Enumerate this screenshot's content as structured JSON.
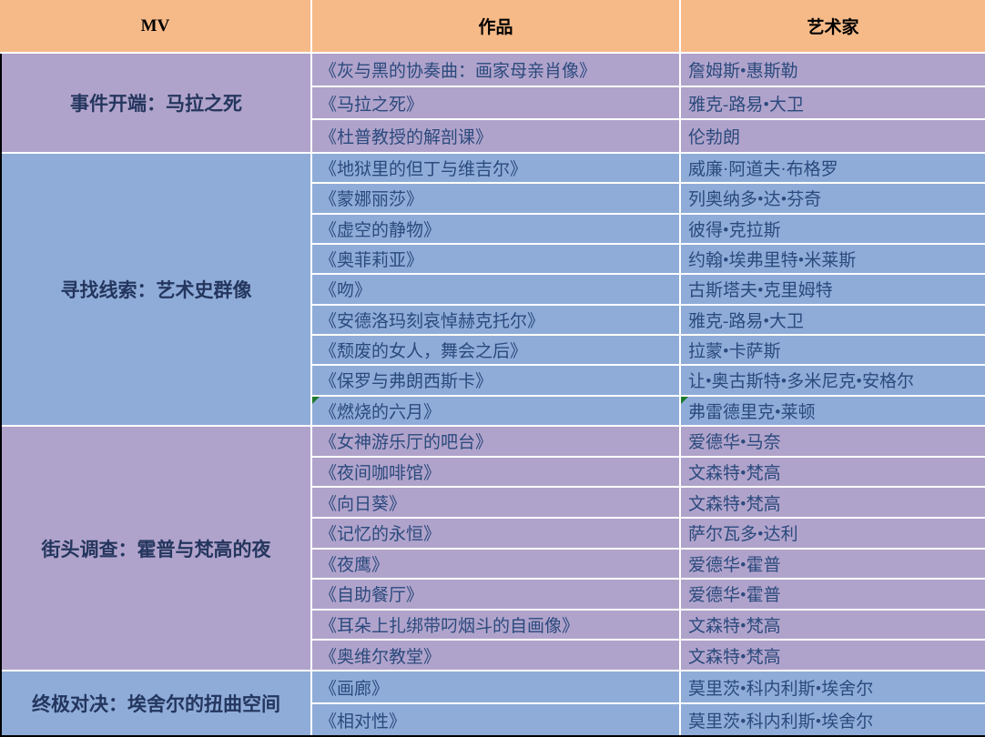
{
  "colors": {
    "header_bg": "#F6BA88",
    "purple_bg": "#B0A3CB",
    "blue_bg": "#8FACD9",
    "grid_line": "#FFFFFF",
    "header_text": "#000000",
    "label_text": "#24365E",
    "body_text": "#2B4A7D",
    "flag_green": "#1D7A2C",
    "outer_border": "#000000"
  },
  "table": {
    "header": {
      "mv": "MV",
      "work": "作品",
      "artist": "艺术家"
    },
    "groups": [
      {
        "label": "事件开端：马拉之死",
        "theme": "purple",
        "rows": [
          {
            "work": "《灰与黑的协奏曲：画家母亲肖像》",
            "artist": "詹姆斯•惠斯勒"
          },
          {
            "work": "《马拉之死》",
            "artist": "雅克-路易•大卫"
          },
          {
            "work": "《杜普教授的解剖课》",
            "artist": "伦勃朗"
          }
        ]
      },
      {
        "label": "寻找线索：艺术史群像",
        "theme": "blue",
        "rows": [
          {
            "work": "《地狱里的但丁与维吉尔》",
            "artist": "威廉·阿道夫·布格罗"
          },
          {
            "work": "《蒙娜丽莎》",
            "artist": "列奥纳多•达•芬奇"
          },
          {
            "work": "《虚空的静物》",
            "artist": "彼得•克拉斯"
          },
          {
            "work": "《奥菲莉亚》",
            "artist": "约翰•埃弗里特•米莱斯"
          },
          {
            "work": "《吻》",
            "artist": "古斯塔夫•克里姆特"
          },
          {
            "work": "《安德洛玛刻哀悼赫克托尔》",
            "artist": "雅克-路易•大卫"
          },
          {
            "work": "《颓废的女人，舞会之后》",
            "artist": "拉蒙•卡萨斯"
          },
          {
            "work": "《保罗与弗朗西斯卡》",
            "artist": "让•奥古斯特•多米尼克•安格尔"
          },
          {
            "work": "《燃烧的六月》",
            "artist": "弗雷德里克•莱顿",
            "work_flag": true,
            "artist_flag": true
          }
        ]
      },
      {
        "label": "街头调查：霍普与梵高的夜",
        "theme": "purple",
        "rows": [
          {
            "work": "《女神游乐厅的吧台》",
            "artist": "爱德华•马奈"
          },
          {
            "work": "《夜间咖啡馆》",
            "artist": "文森特•梵高"
          },
          {
            "work": "《向日葵》",
            "artist": "文森特•梵高"
          },
          {
            "work": "《记忆的永恒》",
            "artist": "萨尔瓦多•达利"
          },
          {
            "work": "《夜鹰》",
            "artist": "爱德华•霍普"
          },
          {
            "work": "《自助餐厅》",
            "artist": "爱德华•霍普"
          },
          {
            "work": "《耳朵上扎绑带叼烟斗的自画像》",
            "artist": "文森特•梵高"
          },
          {
            "work": "《奥维尔教堂》",
            "artist": "文森特•梵高"
          }
        ]
      },
      {
        "label": "终极对决：埃舍尔的扭曲空间",
        "theme": "blue",
        "rows": [
          {
            "work": "《画廊》",
            "artist": "莫里茨•科内利斯•埃舍尔"
          },
          {
            "work": "《相对性》",
            "artist": "莫里茨•科内利斯•埃舍尔"
          }
        ]
      }
    ]
  },
  "chart_data": {
    "type": "table",
    "columns": [
      "MV",
      "作品",
      "艺术家"
    ],
    "rows": [
      [
        "事件开端：马拉之死",
        "《灰与黑的协奏曲：画家母亲肖像》",
        "詹姆斯•惠斯勒"
      ],
      [
        "事件开端：马拉之死",
        "《马拉之死》",
        "雅克-路易•大卫"
      ],
      [
        "事件开端：马拉之死",
        "《杜普教授的解剖课》",
        "伦勃朗"
      ],
      [
        "寻找线索：艺术史群像",
        "《地狱里的但丁与维吉尔》",
        "威廉·阿道夫·布格罗"
      ],
      [
        "寻找线索：艺术史群像",
        "《蒙娜丽莎》",
        "列奥纳多•达•芬奇"
      ],
      [
        "寻找线索：艺术史群像",
        "《虚空的静物》",
        "彼得•克拉斯"
      ],
      [
        "寻找线索：艺术史群像",
        "《奥菲莉亚》",
        "约翰•埃弗里特•米莱斯"
      ],
      [
        "寻找线索：艺术史群像",
        "《吻》",
        "古斯塔夫•克里姆特"
      ],
      [
        "寻找线索：艺术史群像",
        "《安德洛玛刻哀悼赫克托尔》",
        "雅克-路易•大卫"
      ],
      [
        "寻找线索：艺术史群像",
        "《颓废的女人，舞会之后》",
        "拉蒙•卡萨斯"
      ],
      [
        "寻找线索：艺术史群像",
        "《保罗与弗朗西斯卡》",
        "让•奥古斯特•多米尼克•安格尔"
      ],
      [
        "寻找线索：艺术史群像",
        "《燃烧的六月》",
        "弗雷德里克•莱顿"
      ],
      [
        "街头调查：霍普与梵高的夜",
        "《女神游乐厅的吧台》",
        "爱德华•马奈"
      ],
      [
        "街头调查：霍普与梵高的夜",
        "《夜间咖啡馆》",
        "文森特•梵高"
      ],
      [
        "街头调查：霍普与梵高的夜",
        "《向日葵》",
        "文森特•梵高"
      ],
      [
        "街头调查：霍普与梵高的夜",
        "《记忆的永恒》",
        "萨尔瓦多•达利"
      ],
      [
        "街头调查：霍普与梵高的夜",
        "《夜鹰》",
        "爱德华•霍普"
      ],
      [
        "街头调查：霍普与梵高的夜",
        "《自助餐厅》",
        "爱德华•霍普"
      ],
      [
        "街头调查：霍普与梵高的夜",
        "《耳朵上扎绑带叼烟斗的自画像》",
        "文森特•梵高"
      ],
      [
        "街头调查：霍普与梵高的夜",
        "《奥维尔教堂》",
        "文森特•梵高"
      ],
      [
        "终极对决：埃舍尔的扭曲空间",
        "《画廊》",
        "莫里茨•科内利斯•埃舍尔"
      ],
      [
        "终极对决：埃舍尔的扭曲空间",
        "《相对性》",
        "莫里茨•科内利斯•埃舍尔"
      ]
    ]
  }
}
